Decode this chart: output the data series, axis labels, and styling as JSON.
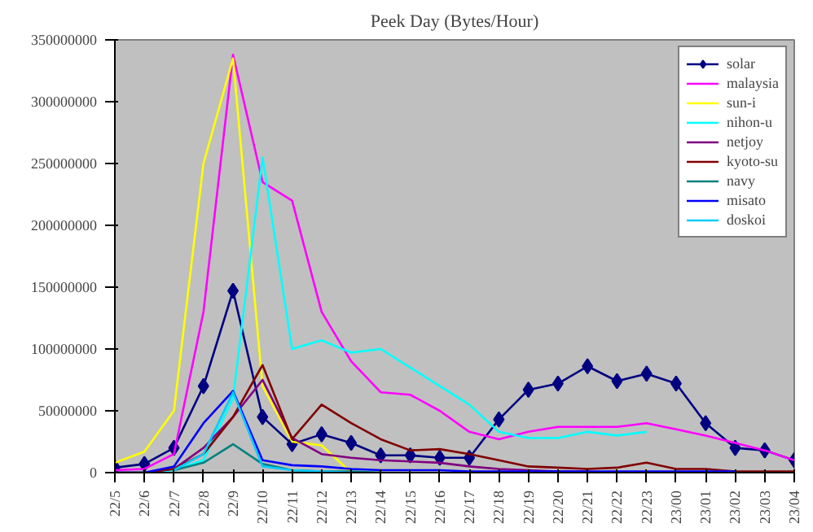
{
  "chart_data": {
    "type": "line",
    "title": "Peek Day (Bytes/Hour)",
    "categories": [
      "22/5",
      "22/6",
      "22/7",
      "22/8",
      "22/9",
      "22/10",
      "22/11",
      "22/12",
      "22/13",
      "22/14",
      "22/15",
      "22/16",
      "22/17",
      "22/18",
      "22/19",
      "22/20",
      "22/21",
      "22/22",
      "22/23",
      "23/00",
      "23/01",
      "23/02",
      "23/03",
      "23/04"
    ],
    "ylim": [
      0,
      350000000
    ],
    "yticks": [
      0,
      50000000,
      100000000,
      150000000,
      200000000,
      250000000,
      300000000,
      350000000
    ],
    "grid": false,
    "legend": "top right",
    "marker": "none",
    "series": [
      {
        "name": "solar",
        "color": "#000080",
        "marker": "diamond",
        "values": [
          4000000,
          7000000,
          20000000,
          70000000,
          147000000,
          45000000,
          23000000,
          31000000,
          24000000,
          14000000,
          14000000,
          12000000,
          12000000,
          43000000,
          67000000,
          72000000,
          86000000,
          74000000,
          80000000,
          72000000,
          40000000,
          20000000,
          18000000,
          10000000
        ]
      },
      {
        "name": "malaysia",
        "color": "#ff00ff",
        "values": [
          2000000,
          3000000,
          15000000,
          130000000,
          338000000,
          235000000,
          220000000,
          130000000,
          90000000,
          65000000,
          63000000,
          50000000,
          33000000,
          27000000,
          33000000,
          37000000,
          37000000,
          37000000,
          40000000,
          35000000,
          30000000,
          24000000,
          18000000,
          10000000
        ]
      },
      {
        "name": "sun-i",
        "color": "#ffff00",
        "values": [
          8000000,
          17000000,
          50000000,
          250000000,
          335000000,
          70000000,
          25000000,
          22000000,
          0,
          null,
          null,
          null,
          null,
          null,
          null,
          null,
          null,
          null,
          null,
          null,
          null,
          null,
          null,
          null
        ]
      },
      {
        "name": "nihon-u",
        "color": "#00ffff",
        "values": [
          0,
          0,
          2000000,
          10000000,
          60000000,
          255000000,
          100000000,
          107000000,
          97000000,
          100000000,
          85000000,
          70000000,
          55000000,
          33000000,
          28000000,
          28000000,
          33000000,
          30000000,
          33000000,
          null,
          null,
          null,
          null,
          null
        ]
      },
      {
        "name": "netjoy",
        "color": "#800080",
        "values": [
          0,
          0,
          3000000,
          20000000,
          45000000,
          75000000,
          28000000,
          15000000,
          12000000,
          10000000,
          9000000,
          8000000,
          5000000,
          3000000,
          2000000,
          1000000,
          1000000,
          null,
          null,
          null,
          null,
          null,
          null,
          null
        ]
      },
      {
        "name": "kyoto-su",
        "color": "#800000",
        "values": [
          0,
          0,
          3000000,
          15000000,
          45000000,
          87000000,
          27000000,
          55000000,
          40000000,
          27000000,
          18000000,
          19000000,
          15000000,
          10000000,
          5000000,
          4000000,
          3000000,
          4000000,
          8000000,
          3000000,
          3000000,
          1000000,
          1000000,
          1000000
        ]
      },
      {
        "name": "navy",
        "color": "#008080",
        "values": [
          null,
          null,
          2000000,
          8000000,
          23000000,
          7000000,
          2000000,
          1000000,
          1000000,
          0,
          null,
          null,
          null,
          null,
          null,
          null,
          null,
          null,
          null,
          null,
          null,
          null,
          null,
          null
        ]
      },
      {
        "name": "misato",
        "color": "#0000ff",
        "values": [
          0,
          0,
          5000000,
          40000000,
          66000000,
          10000000,
          6000000,
          5000000,
          3000000,
          2000000,
          2000000,
          2000000,
          1000000,
          1000000,
          1000000,
          1000000,
          1000000,
          1000000,
          1000000,
          1000000,
          1000000,
          1000000,
          null,
          null
        ]
      },
      {
        "name": "doskoi",
        "color": "#00ccff",
        "values": [
          null,
          null,
          2000000,
          15000000,
          65000000,
          5000000,
          2000000,
          1000000,
          0,
          null,
          null,
          null,
          null,
          null,
          null,
          null,
          null,
          null,
          null,
          null,
          null,
          null,
          null,
          null
        ]
      }
    ]
  }
}
